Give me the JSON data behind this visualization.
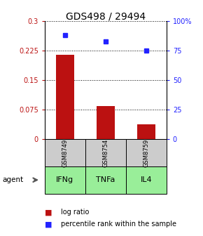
{
  "title": "GDS498 / 29494",
  "categories": [
    "IFNg",
    "TNFa",
    "IL4"
  ],
  "gsm_labels": [
    "GSM8749",
    "GSM8754",
    "GSM8759"
  ],
  "log_ratios": [
    0.215,
    0.085,
    0.038
  ],
  "percentile_ranks": [
    88,
    83,
    75
  ],
  "left_ylim": [
    0,
    0.3
  ],
  "right_ylim": [
    0,
    100
  ],
  "left_yticks": [
    0,
    0.075,
    0.15,
    0.225,
    0.3
  ],
  "right_yticks": [
    0,
    25,
    50,
    75,
    100
  ],
  "left_yticklabels": [
    "0",
    "0.075",
    "0.15",
    "0.225",
    "0.3"
  ],
  "right_yticklabels": [
    "0",
    "25",
    "50",
    "75",
    "100%"
  ],
  "bar_color": "#bb1111",
  "dot_color": "#2222ff",
  "gsm_box_color": "#cccccc",
  "agent_box_color": "#99ee99",
  "title_fontsize": 10,
  "tick_fontsize": 7,
  "label_fontsize": 7.5,
  "legend_fontsize": 7
}
